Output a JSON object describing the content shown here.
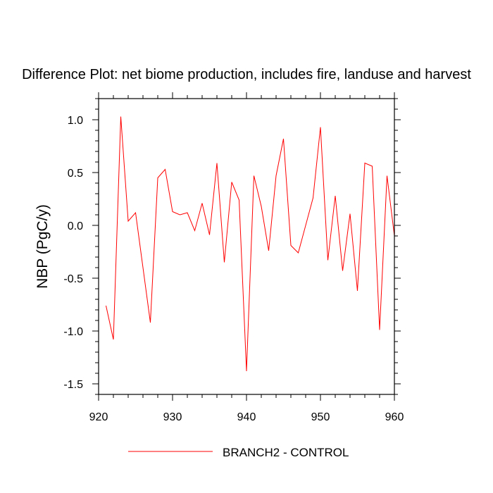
{
  "chart_data": {
    "type": "line",
    "title": "Difference Plot: net biome production, includes fire, landuse and harvest",
    "xlabel": "",
    "ylabel": "NBP  (PgC/y)",
    "xlim": [
      920,
      960
    ],
    "ylim": [
      -1.6,
      1.2
    ],
    "xticks": [
      920,
      930,
      940,
      950,
      960
    ],
    "xtick_labels": [
      "920",
      "930",
      "940",
      "950",
      "960"
    ],
    "yticks": [
      -1.5,
      -1.0,
      -0.5,
      0.0,
      0.5,
      1.0
    ],
    "ytick_labels": [
      "-1.5",
      "-1.0",
      "-0.5",
      "0.0",
      "0.5",
      "1.0"
    ],
    "grid": false,
    "legend_position": "bottom",
    "series": [
      {
        "name": "BRANCH2 - CONTROL",
        "color": "#ff0000",
        "x": [
          921,
          922,
          923,
          924,
          925,
          926,
          927,
          928,
          929,
          930,
          931,
          932,
          933,
          934,
          935,
          936,
          937,
          938,
          939,
          940,
          941,
          942,
          943,
          944,
          945,
          946,
          947,
          948,
          949,
          950,
          951,
          952,
          953,
          954,
          955,
          956,
          957,
          958,
          959,
          960
        ],
        "y": [
          -0.76,
          -1.08,
          1.03,
          0.04,
          0.12,
          -0.4,
          -0.92,
          0.45,
          0.53,
          0.13,
          0.1,
          0.12,
          -0.05,
          0.21,
          -0.09,
          0.59,
          -0.35,
          0.41,
          0.24,
          -1.38,
          0.47,
          0.18,
          -0.24,
          0.47,
          0.82,
          -0.19,
          -0.26,
          0.0,
          0.26,
          0.93,
          -0.33,
          0.28,
          -0.43,
          0.11,
          -0.62,
          0.59,
          0.56,
          -0.99,
          0.47,
          -0.1
        ]
      }
    ]
  }
}
